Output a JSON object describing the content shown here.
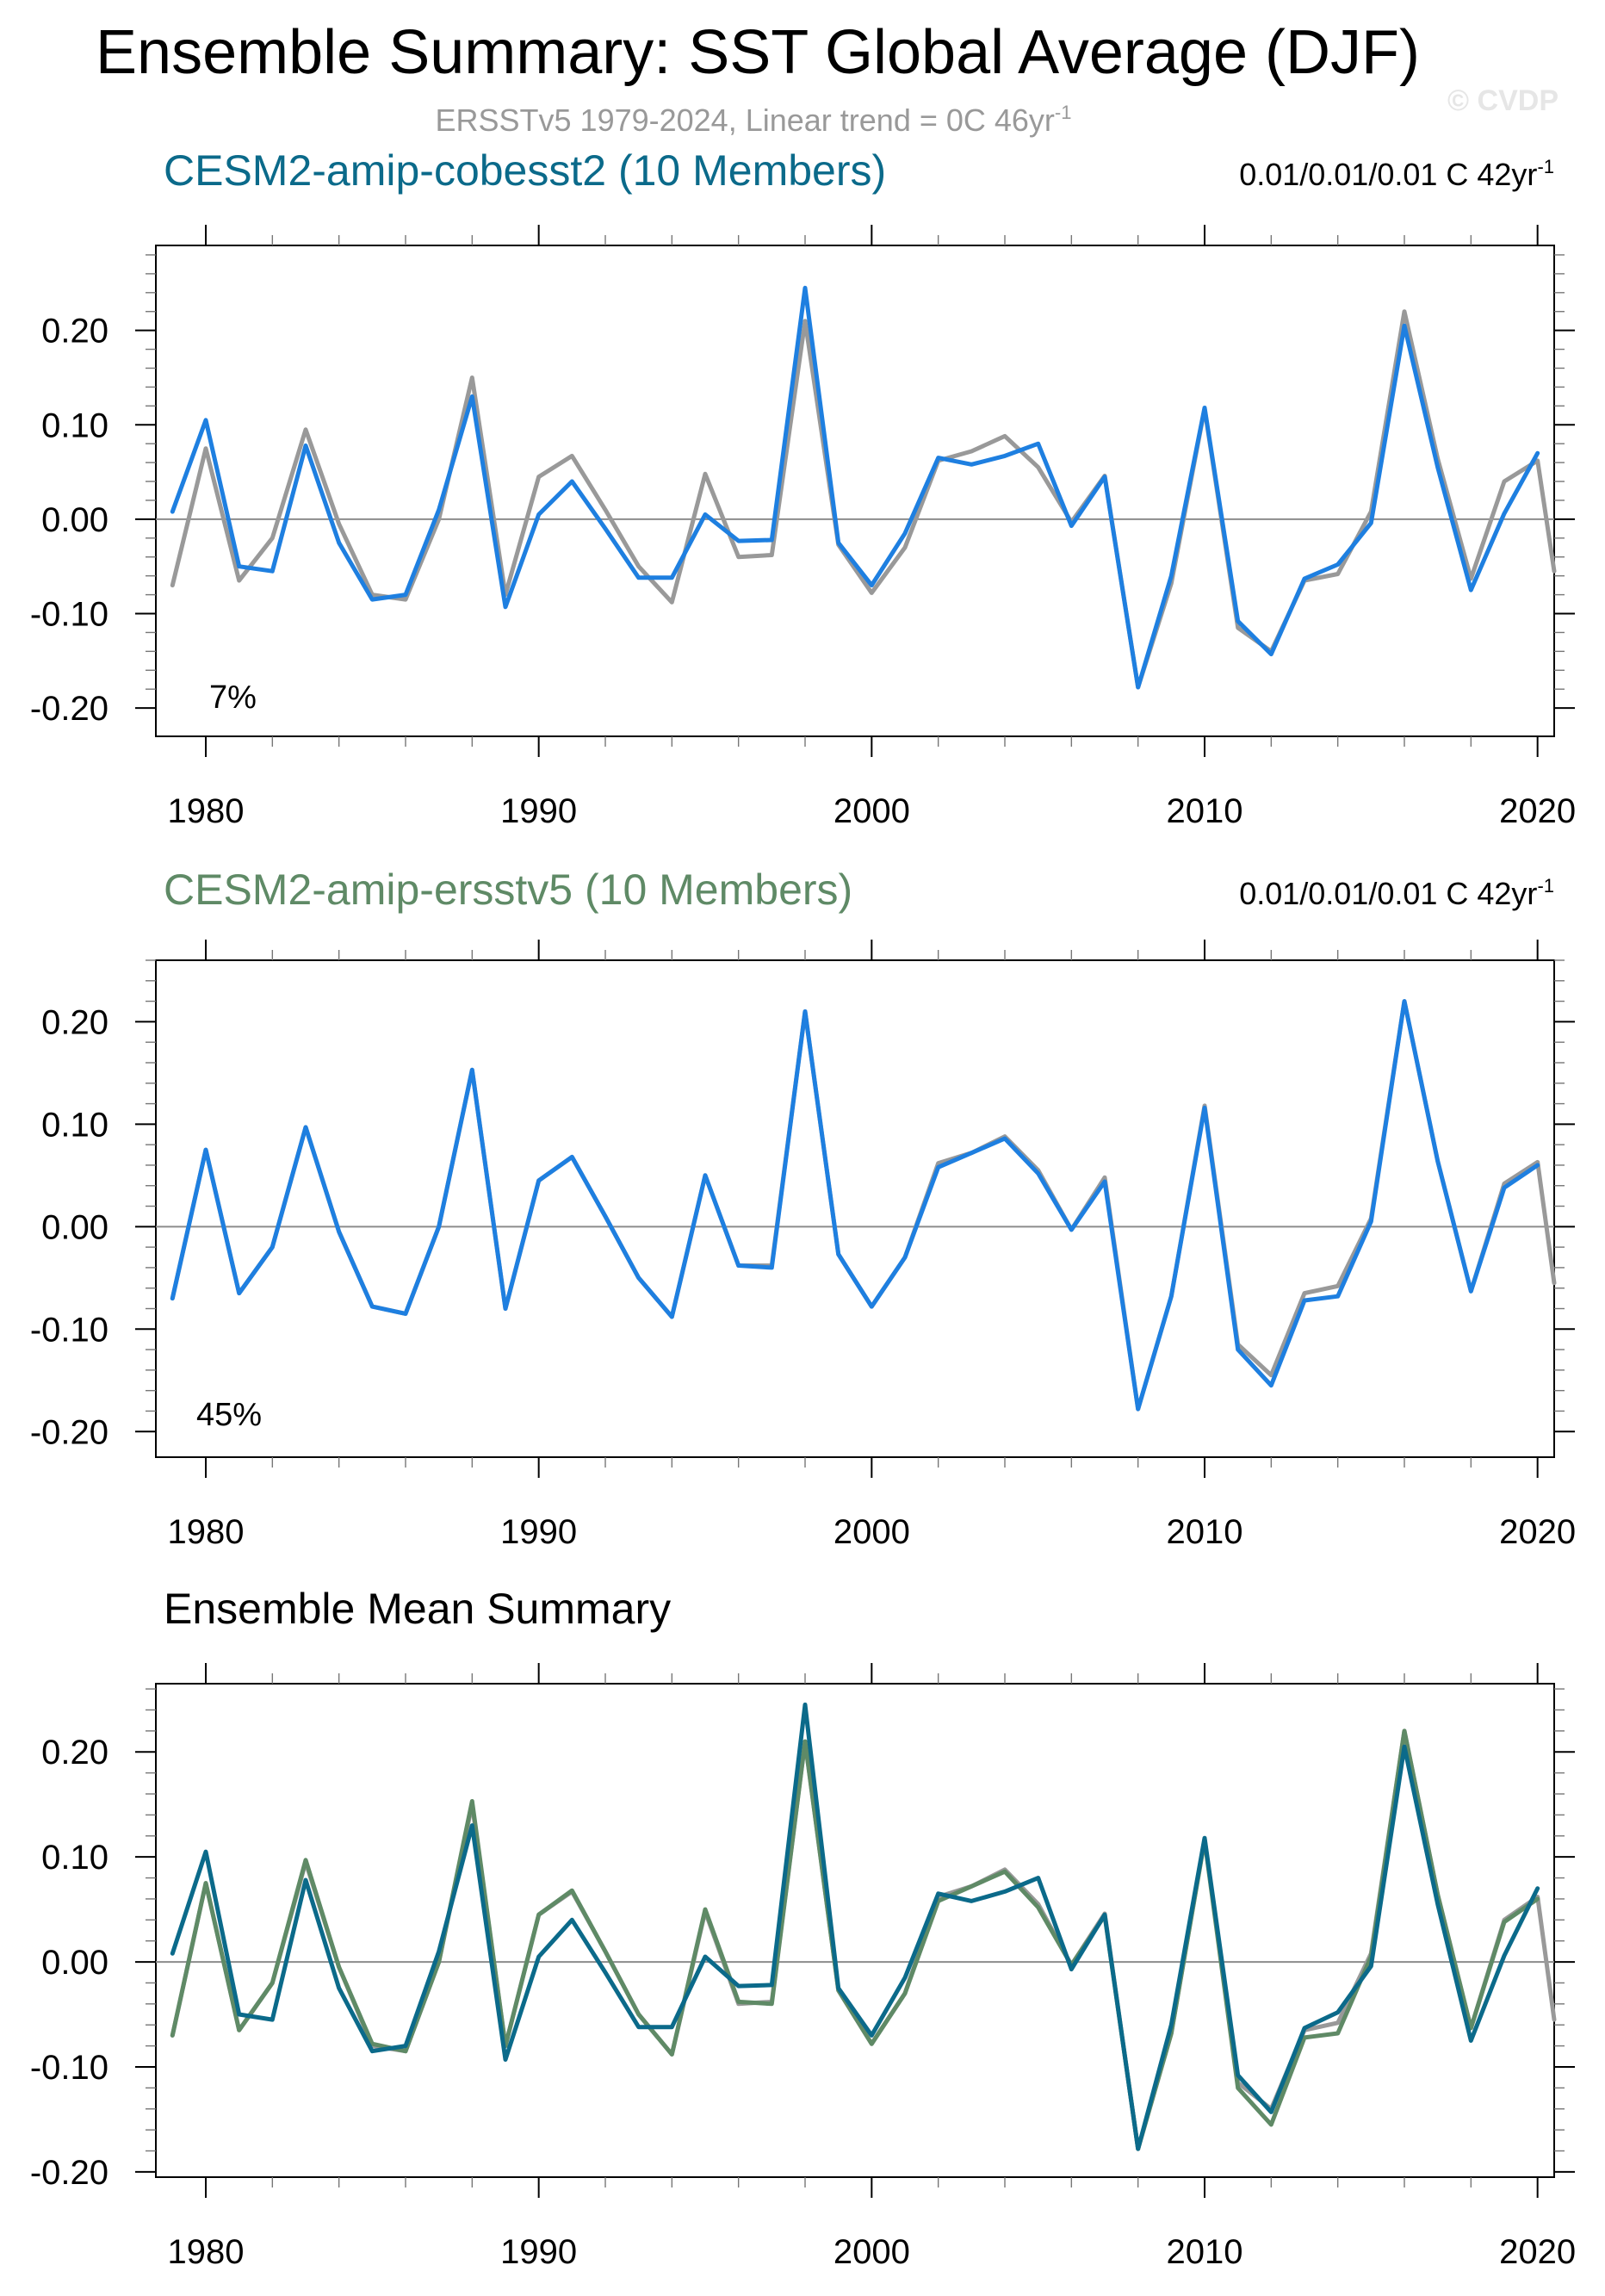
{
  "figure": {
    "title": "Ensemble Summary: SST Global Average (DJF)",
    "subtitle": "ERSSTv5 1979-2024, Linear trend = 0C 46yr",
    "subtitle_sup": "-1",
    "watermark": "© CVDP"
  },
  "colors": {
    "obs": "#999999",
    "member": "#1e7fe0",
    "cobesst2": "#0b6a8a",
    "ersstv5": "#5f8a66",
    "axis": "#000000",
    "zero_line": "#8c8c8c"
  },
  "chart_data": [
    {
      "type": "line",
      "title": "CESM2-amip-cobesst2 (10 Members)",
      "title_color": "#0b6a8a",
      "trend_label": "0.01/0.01/0.01 C 42yr",
      "trend_sup": "-1",
      "percent_label": "7%",
      "xlim": [
        1978.5,
        2020.5
      ],
      "ylim": [
        -0.23,
        0.29
      ],
      "yticks": [
        -0.2,
        -0.1,
        0.0,
        0.1,
        0.2
      ],
      "ytick_labels": [
        "-0.20",
        "-0.10",
        "0.00",
        "0.10",
        "0.20"
      ],
      "xticks": [
        1980,
        1990,
        2000,
        2010,
        2020
      ],
      "xtick_labels": [
        "1980",
        "1990",
        "2000",
        "2010",
        "2020"
      ],
      "series": [
        {
          "name": "ERSSTv5 observations",
          "color": "#999999",
          "x": [
            1979,
            1980,
            1981,
            1982,
            1983,
            1984,
            1985,
            1986,
            1987,
            1988,
            1989,
            1990,
            1991,
            1992,
            1993,
            1994,
            1995,
            1996,
            1997,
            1998,
            1999,
            2000,
            2001,
            2002,
            2003,
            2004,
            2005,
            2006,
            2007,
            2008,
            2009,
            2010,
            2011,
            2012,
            2013,
            2014,
            2015,
            2016,
            2017,
            2018,
            2019,
            2020,
            2020.5
          ],
          "values": [
            -0.07,
            0.075,
            -0.065,
            -0.02,
            0.095,
            -0.005,
            -0.08,
            -0.085,
            0.0,
            0.15,
            -0.08,
            0.045,
            0.067,
            0.01,
            -0.05,
            -0.088,
            0.048,
            -0.04,
            -0.038,
            0.21,
            -0.027,
            -0.078,
            -0.03,
            0.062,
            0.072,
            0.088,
            0.055,
            -0.003,
            0.046,
            -0.178,
            -0.068,
            0.117,
            -0.115,
            -0.14,
            -0.065,
            -0.058,
            0.008,
            0.22,
            0.064,
            -0.063,
            0.04,
            0.062,
            -0.055
          ]
        },
        {
          "name": "CESM2-amip-cobesst2 ensemble mean",
          "color": "#1e7fe0",
          "x": [
            1979,
            1980,
            1981,
            1982,
            1983,
            1984,
            1985,
            1986,
            1987,
            1988,
            1989,
            1990,
            1991,
            1992,
            1993,
            1994,
            1995,
            1996,
            1997,
            1998,
            1999,
            2000,
            2001,
            2002,
            2003,
            2004,
            2005,
            2006,
            2007,
            2008,
            2009,
            2010,
            2011,
            2012,
            2013,
            2014,
            2015,
            2016,
            2017,
            2018,
            2019,
            2020
          ],
          "values": [
            0.008,
            0.105,
            -0.05,
            -0.055,
            0.078,
            -0.025,
            -0.085,
            -0.08,
            0.01,
            0.13,
            -0.093,
            0.005,
            0.04,
            -0.01,
            -0.062,
            -0.062,
            0.005,
            -0.023,
            -0.022,
            0.245,
            -0.025,
            -0.07,
            -0.015,
            0.065,
            0.058,
            0.067,
            0.08,
            -0.007,
            0.045,
            -0.178,
            -0.06,
            0.118,
            -0.108,
            -0.143,
            -0.063,
            -0.048,
            -0.004,
            0.205,
            0.055,
            -0.075,
            0.006,
            0.07
          ]
        }
      ]
    },
    {
      "type": "line",
      "title": "CESM2-amip-ersstv5 (10 Members)",
      "title_color": "#5f8a66",
      "trend_label": "0.01/0.01/0.01 C 42yr",
      "trend_sup": "-1",
      "percent_label": "45%",
      "xlim": [
        1978.5,
        2020.5
      ],
      "ylim": [
        -0.225,
        0.26
      ],
      "yticks": [
        -0.2,
        -0.1,
        0.0,
        0.1,
        0.2
      ],
      "ytick_labels": [
        "-0.20",
        "-0.10",
        "0.00",
        "0.10",
        "0.20"
      ],
      "xticks": [
        1980,
        1990,
        2000,
        2010,
        2020
      ],
      "xtick_labels": [
        "1980",
        "1990",
        "2000",
        "2010",
        "2020"
      ],
      "series": [
        {
          "name": "ERSSTv5 observations",
          "color": "#999999",
          "x": [
            1979,
            1980,
            1981,
            1982,
            1983,
            1984,
            1985,
            1986,
            1987,
            1988,
            1989,
            1990,
            1991,
            1992,
            1993,
            1994,
            1995,
            1996,
            1997,
            1998,
            1999,
            2000,
            2001,
            2002,
            2003,
            2004,
            2005,
            2006,
            2007,
            2008,
            2009,
            2010,
            2011,
            2012,
            2013,
            2014,
            2015,
            2016,
            2017,
            2018,
            2019,
            2020,
            2020.5
          ],
          "values": [
            -0.07,
            0.075,
            -0.065,
            -0.02,
            0.097,
            -0.005,
            -0.078,
            -0.085,
            0.0,
            0.153,
            -0.08,
            0.045,
            0.068,
            0.01,
            -0.05,
            -0.088,
            0.05,
            -0.038,
            -0.038,
            0.21,
            -0.027,
            -0.078,
            -0.03,
            0.062,
            0.072,
            0.088,
            0.055,
            -0.003,
            0.048,
            -0.178,
            -0.068,
            0.118,
            -0.115,
            -0.145,
            -0.065,
            -0.058,
            0.008,
            0.22,
            0.064,
            -0.063,
            0.042,
            0.063,
            -0.055
          ]
        },
        {
          "name": "CESM2-amip-ersstv5 ensemble mean",
          "color": "#1e7fe0",
          "x": [
            1979,
            1980,
            1981,
            1982,
            1983,
            1984,
            1985,
            1986,
            1987,
            1988,
            1989,
            1990,
            1991,
            1992,
            1993,
            1994,
            1995,
            1996,
            1997,
            1998,
            1999,
            2000,
            2001,
            2002,
            2003,
            2004,
            2005,
            2006,
            2007,
            2008,
            2009,
            2010,
            2011,
            2012,
            2013,
            2014,
            2015,
            2016,
            2017,
            2018,
            2019,
            2020
          ],
          "values": [
            -0.07,
            0.075,
            -0.065,
            -0.02,
            0.097,
            -0.005,
            -0.078,
            -0.085,
            0.0,
            0.153,
            -0.08,
            0.045,
            0.068,
            0.01,
            -0.05,
            -0.088,
            0.05,
            -0.038,
            -0.04,
            0.21,
            -0.027,
            -0.078,
            -0.03,
            0.058,
            0.072,
            0.086,
            0.052,
            -0.003,
            0.044,
            -0.178,
            -0.068,
            0.116,
            -0.12,
            -0.155,
            -0.072,
            -0.068,
            0.005,
            0.22,
            0.064,
            -0.063,
            0.038,
            0.06
          ]
        }
      ]
    },
    {
      "type": "line",
      "title": "Ensemble Mean Summary",
      "title_color": "#000000",
      "trend_label": "",
      "trend_sup": "",
      "percent_label": "",
      "xlim": [
        1978.5,
        2020.5
      ],
      "ylim": [
        -0.205,
        0.265
      ],
      "yticks": [
        -0.2,
        -0.1,
        0.0,
        0.1,
        0.2
      ],
      "ytick_labels": [
        "-0.20",
        "-0.10",
        "0.00",
        "0.10",
        "0.20"
      ],
      "xticks": [
        1980,
        1990,
        2000,
        2010,
        2020
      ],
      "xtick_labels": [
        "1980",
        "1990",
        "2000",
        "2010",
        "2020"
      ],
      "series": [
        {
          "name": "ERSSTv5 observations",
          "color": "#999999",
          "x": [
            1979,
            1980,
            1981,
            1982,
            1983,
            1984,
            1985,
            1986,
            1987,
            1988,
            1989,
            1990,
            1991,
            1992,
            1993,
            1994,
            1995,
            1996,
            1997,
            1998,
            1999,
            2000,
            2001,
            2002,
            2003,
            2004,
            2005,
            2006,
            2007,
            2008,
            2009,
            2010,
            2011,
            2012,
            2013,
            2014,
            2015,
            2016,
            2017,
            2018,
            2019,
            2020,
            2020.5
          ],
          "values": [
            -0.07,
            0.075,
            -0.065,
            -0.02,
            0.095,
            -0.005,
            -0.08,
            -0.085,
            0.0,
            0.15,
            -0.08,
            0.045,
            0.067,
            0.01,
            -0.05,
            -0.088,
            0.048,
            -0.04,
            -0.038,
            0.21,
            -0.027,
            -0.078,
            -0.03,
            0.062,
            0.072,
            0.088,
            0.055,
            -0.003,
            0.046,
            -0.178,
            -0.068,
            0.117,
            -0.115,
            -0.14,
            -0.065,
            -0.058,
            0.008,
            0.22,
            0.064,
            -0.063,
            0.04,
            0.062,
            -0.055
          ]
        },
        {
          "name": "CESM2-amip-ersstv5 ensemble mean",
          "color": "#5f8a66",
          "x": [
            1979,
            1980,
            1981,
            1982,
            1983,
            1984,
            1985,
            1986,
            1987,
            1988,
            1989,
            1990,
            1991,
            1992,
            1993,
            1994,
            1995,
            1996,
            1997,
            1998,
            1999,
            2000,
            2001,
            2002,
            2003,
            2004,
            2005,
            2006,
            2007,
            2008,
            2009,
            2010,
            2011,
            2012,
            2013,
            2014,
            2015,
            2016,
            2017,
            2018,
            2019,
            2020
          ],
          "values": [
            -0.07,
            0.075,
            -0.065,
            -0.02,
            0.097,
            -0.005,
            -0.078,
            -0.085,
            0.0,
            0.153,
            -0.08,
            0.045,
            0.068,
            0.01,
            -0.05,
            -0.088,
            0.05,
            -0.038,
            -0.04,
            0.21,
            -0.027,
            -0.078,
            -0.03,
            0.058,
            0.072,
            0.086,
            0.052,
            -0.003,
            0.044,
            -0.178,
            -0.068,
            0.116,
            -0.12,
            -0.155,
            -0.072,
            -0.068,
            0.005,
            0.22,
            0.064,
            -0.063,
            0.038,
            0.06
          ]
        },
        {
          "name": "CESM2-amip-cobesst2 ensemble mean",
          "color": "#0b6a8a",
          "x": [
            1979,
            1980,
            1981,
            1982,
            1983,
            1984,
            1985,
            1986,
            1987,
            1988,
            1989,
            1990,
            1991,
            1992,
            1993,
            1994,
            1995,
            1996,
            1997,
            1998,
            1999,
            2000,
            2001,
            2002,
            2003,
            2004,
            2005,
            2006,
            2007,
            2008,
            2009,
            2010,
            2011,
            2012,
            2013,
            2014,
            2015,
            2016,
            2017,
            2018,
            2019,
            2020
          ],
          "values": [
            0.008,
            0.105,
            -0.05,
            -0.055,
            0.078,
            -0.025,
            -0.085,
            -0.08,
            0.01,
            0.13,
            -0.093,
            0.005,
            0.04,
            -0.01,
            -0.062,
            -0.062,
            0.005,
            -0.023,
            -0.022,
            0.245,
            -0.025,
            -0.07,
            -0.015,
            0.065,
            0.058,
            0.067,
            0.08,
            -0.007,
            0.045,
            -0.178,
            -0.06,
            0.118,
            -0.108,
            -0.143,
            -0.063,
            -0.048,
            -0.004,
            0.205,
            0.055,
            -0.075,
            0.006,
            0.07
          ]
        }
      ]
    }
  ]
}
